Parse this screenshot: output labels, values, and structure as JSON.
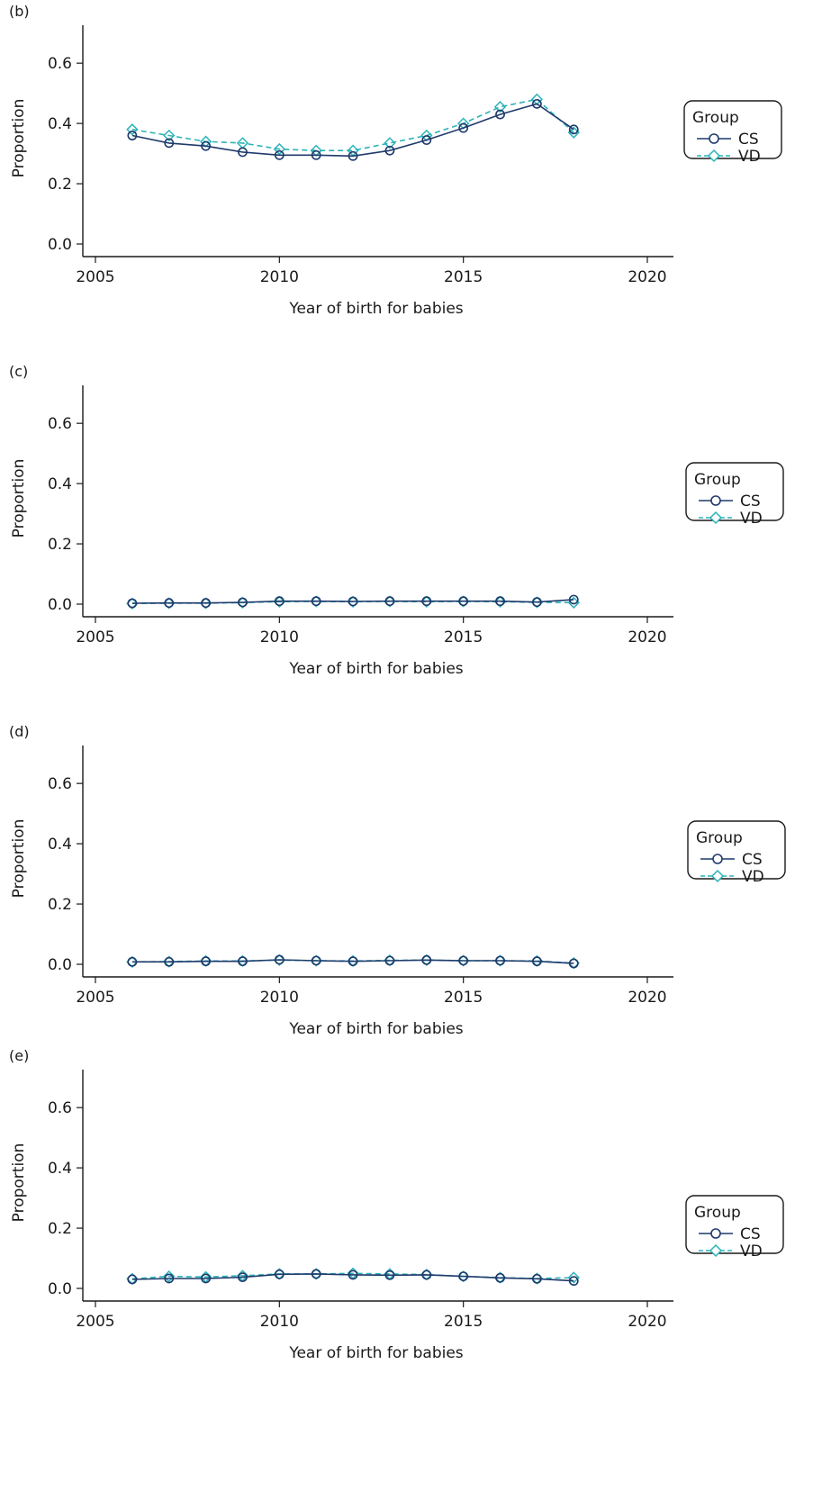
{
  "colors": {
    "cs": "#1f3a6b",
    "vd": "#2bb3b8",
    "axis": "#1a1a1a"
  },
  "chart_data": [
    {
      "panel_label": "(b)",
      "type": "line",
      "xlabel": "Year of birth for babies",
      "ylabel": "Proportion",
      "xlim": [
        2005,
        2020
      ],
      "ylim": [
        0,
        0.6
      ],
      "xticks": [
        2005,
        2010,
        2015,
        2020
      ],
      "yticks": [
        "0.0",
        "0.2",
        "0.4",
        "0.6"
      ],
      "x": [
        2006,
        2007,
        2008,
        2009,
        2010,
        2011,
        2012,
        2013,
        2014,
        2015,
        2016,
        2017,
        2018
      ],
      "legend": {
        "title": "Group",
        "position": "right"
      },
      "series": [
        {
          "name": "CS",
          "marker": "circle",
          "line": "solid",
          "values": [
            0.36,
            0.335,
            0.325,
            0.305,
            0.295,
            0.295,
            0.292,
            0.31,
            0.345,
            0.385,
            0.43,
            0.465,
            0.38
          ]
        },
        {
          "name": "VD",
          "marker": "diamond",
          "line": "dashed",
          "values": [
            0.38,
            0.36,
            0.34,
            0.335,
            0.315,
            0.31,
            0.31,
            0.335,
            0.36,
            0.4,
            0.455,
            0.48,
            0.37
          ]
        }
      ]
    },
    {
      "panel_label": "(c)",
      "type": "line",
      "xlabel": "Year of birth for babies",
      "ylabel": "Proportion",
      "xlim": [
        2005,
        2020
      ],
      "ylim": [
        0,
        0.6
      ],
      "xticks": [
        2005,
        2010,
        2015,
        2020
      ],
      "yticks": [
        "0.0",
        "0.2",
        "0.4",
        "0.6"
      ],
      "x": [
        2006,
        2007,
        2008,
        2009,
        2010,
        2011,
        2012,
        2013,
        2014,
        2015,
        2016,
        2017,
        2018
      ],
      "legend": {
        "title": "Group",
        "position": "right"
      },
      "series": [
        {
          "name": "CS",
          "marker": "circle",
          "line": "solid",
          "values": [
            0.003,
            0.004,
            0.004,
            0.006,
            0.01,
            0.01,
            0.009,
            0.01,
            0.01,
            0.01,
            0.01,
            0.007,
            0.015
          ]
        },
        {
          "name": "VD",
          "marker": "diamond",
          "line": "dashed",
          "values": [
            0.002,
            0.003,
            0.003,
            0.005,
            0.008,
            0.009,
            0.008,
            0.009,
            0.008,
            0.009,
            0.008,
            0.006,
            0.005
          ]
        }
      ]
    },
    {
      "panel_label": "(d)",
      "type": "line",
      "xlabel": "Year of birth for babies",
      "ylabel": "Proportion",
      "xlim": [
        2005,
        2020
      ],
      "ylim": [
        0,
        0.6
      ],
      "xticks": [
        2005,
        2010,
        2015,
        2020
      ],
      "yticks": [
        "0.0",
        "0.2",
        "0.4",
        "0.6"
      ],
      "x": [
        2006,
        2007,
        2008,
        2009,
        2010,
        2011,
        2012,
        2013,
        2014,
        2015,
        2016,
        2017,
        2018
      ],
      "legend": {
        "title": "Group",
        "position": "right"
      },
      "series": [
        {
          "name": "CS",
          "marker": "circle",
          "line": "solid",
          "values": [
            0.008,
            0.008,
            0.01,
            0.01,
            0.015,
            0.012,
            0.01,
            0.012,
            0.014,
            0.012,
            0.012,
            0.01,
            0.003
          ]
        },
        {
          "name": "VD",
          "marker": "diamond",
          "line": "dashed",
          "values": [
            0.008,
            0.009,
            0.011,
            0.011,
            0.014,
            0.012,
            0.011,
            0.013,
            0.014,
            0.012,
            0.012,
            0.011,
            0.004
          ]
        }
      ]
    },
    {
      "panel_label": "(e)",
      "type": "line",
      "xlabel": "Year of birth for babies",
      "ylabel": "Proportion",
      "xlim": [
        2005,
        2020
      ],
      "ylim": [
        0,
        0.6
      ],
      "xticks": [
        2005,
        2010,
        2015,
        2020
      ],
      "yticks": [
        "0.0",
        "0.2",
        "0.4",
        "0.6"
      ],
      "x": [
        2006,
        2007,
        2008,
        2009,
        2010,
        2011,
        2012,
        2013,
        2014,
        2015,
        2016,
        2017,
        2018
      ],
      "legend": {
        "title": "Group",
        "position": "right"
      },
      "series": [
        {
          "name": "CS",
          "marker": "circle",
          "line": "solid",
          "values": [
            0.03,
            0.033,
            0.033,
            0.037,
            0.047,
            0.048,
            0.045,
            0.044,
            0.045,
            0.04,
            0.035,
            0.032,
            0.025
          ]
        },
        {
          "name": "VD",
          "marker": "diamond",
          "line": "dashed",
          "values": [
            0.032,
            0.04,
            0.038,
            0.042,
            0.048,
            0.048,
            0.05,
            0.048,
            0.046,
            0.04,
            0.036,
            0.033,
            0.036
          ]
        }
      ]
    }
  ]
}
